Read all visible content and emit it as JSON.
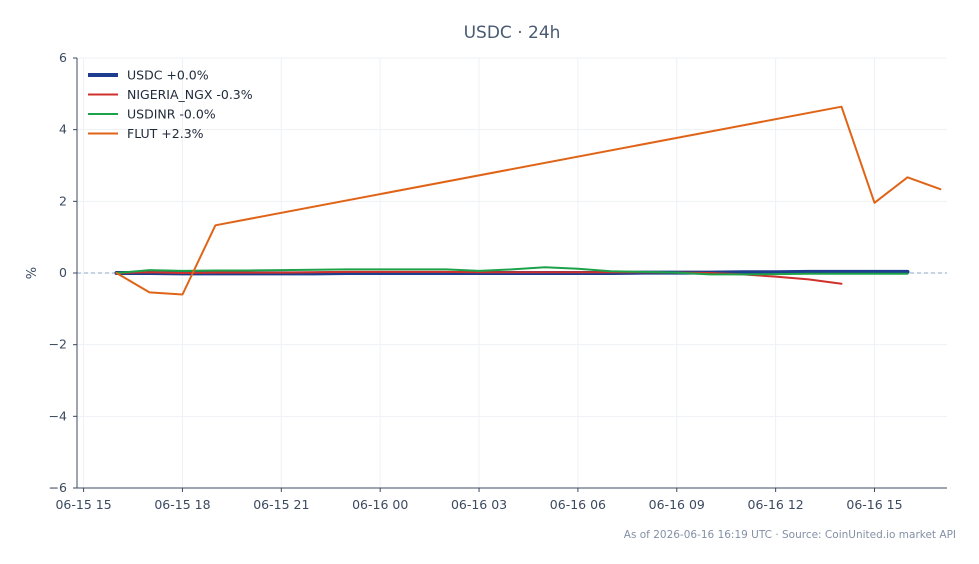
{
  "chart_data": {
    "type": "line",
    "title": "USDC · 24h",
    "xlabel": "",
    "ylabel": "%",
    "ylim": [
      -6,
      6
    ],
    "yticks": [
      -6,
      -4,
      -2,
      0,
      2,
      4,
      6
    ],
    "ytick_labels": [
      "−6",
      "−4",
      "−2",
      "0",
      "2",
      "4",
      "6"
    ],
    "x_unit": "hours since 06-15 15:00",
    "xlim": [
      -0.2,
      26.2
    ],
    "xticks": [
      0,
      3,
      6,
      9,
      12,
      15,
      18,
      21,
      24
    ],
    "xtick_labels": [
      "06-15 15",
      "06-15 18",
      "06-15 21",
      "06-16 00",
      "06-16 03",
      "06-16 06",
      "06-16 09",
      "06-16 12",
      "06-16 15"
    ],
    "grid": true,
    "zero_line": true,
    "legend_position": "top-left",
    "series": [
      {
        "name": "USDC +0.0%",
        "color": "#1f3d8f",
        "width": 4,
        "x": [
          1,
          2,
          3,
          4,
          5,
          6,
          7,
          8,
          9,
          10,
          11,
          12,
          13,
          14,
          15,
          16,
          17,
          18,
          19,
          20,
          21,
          22,
          23,
          24,
          25
        ],
        "y": [
          0.0,
          0.0,
          -0.01,
          -0.01,
          -0.01,
          -0.01,
          -0.01,
          0.0,
          0.0,
          0.0,
          0.0,
          0.0,
          0.0,
          0.0,
          0.0,
          0.0,
          0.01,
          0.01,
          0.01,
          0.02,
          0.02,
          0.03,
          0.03,
          0.03,
          0.03
        ]
      },
      {
        "name": "NIGERIA_NGX -0.3%",
        "color": "#d0302b",
        "width": 2,
        "x": [
          1,
          2,
          3,
          4,
          5,
          6,
          7,
          8,
          9,
          10,
          11,
          12,
          13,
          14,
          15,
          16,
          17,
          18,
          19,
          20,
          21,
          22,
          23
        ],
        "y": [
          0.0,
          0.02,
          0.0,
          0.01,
          0.01,
          0.01,
          0.02,
          0.03,
          0.03,
          0.03,
          0.03,
          0.02,
          0.02,
          0.02,
          0.02,
          0.02,
          0.02,
          0.01,
          0.0,
          -0.04,
          -0.1,
          -0.18,
          -0.3
        ]
      },
      {
        "name": "USDINR -0.0%",
        "color": "#1ca34a",
        "width": 2,
        "x": [
          1,
          2,
          3,
          4,
          5,
          6,
          7,
          8,
          9,
          10,
          11,
          12,
          13,
          14,
          15,
          16,
          17,
          18,
          19,
          20,
          21,
          22,
          23,
          24,
          25
        ],
        "y": [
          0.0,
          0.08,
          0.06,
          0.07,
          0.07,
          0.08,
          0.09,
          0.1,
          0.1,
          0.1,
          0.1,
          0.06,
          0.1,
          0.16,
          0.12,
          0.05,
          0.03,
          0.01,
          -0.04,
          -0.04,
          -0.03,
          -0.02,
          -0.02,
          -0.02,
          -0.02
        ]
      },
      {
        "name": "FLUT +2.3%",
        "color": "#e06418",
        "width": 2,
        "x": [
          1,
          2,
          3,
          4,
          23,
          24,
          25,
          26
        ],
        "y": [
          0.0,
          -0.54,
          -0.6,
          1.33,
          4.64,
          1.96,
          2.67,
          2.34
        ]
      }
    ]
  },
  "footer": "As of 2026-06-16 16:19 UTC · Source: CoinUnited.io market API"
}
